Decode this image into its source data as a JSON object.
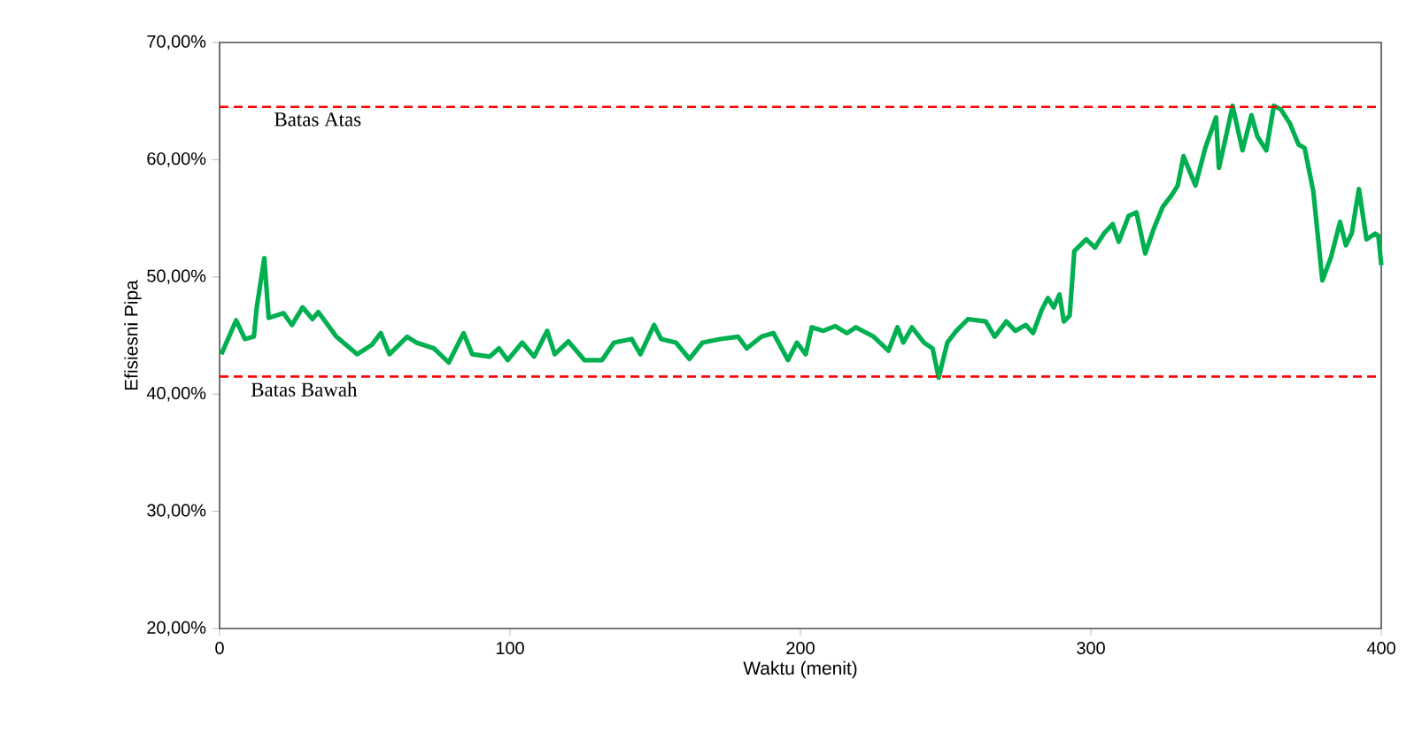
{
  "chart_data": {
    "type": "line",
    "xlabel": "Waktu (menit)",
    "ylabel": "Efisiesni Pipa",
    "xlim": [
      0,
      400
    ],
    "xticks": [
      0,
      100,
      200,
      300,
      400
    ],
    "ylim": [
      20,
      70
    ],
    "yticks": [
      {
        "value": 20,
        "label": "20,00%"
      },
      {
        "value": 30,
        "label": "30,00%"
      },
      {
        "value": 40,
        "label": "40,00%"
      },
      {
        "value": 50,
        "label": "50,00%"
      },
      {
        "value": 60,
        "label": "60,00%"
      },
      {
        "value": 70,
        "label": "70,00%"
      }
    ],
    "grid": false,
    "marker": "none",
    "line_style": "solid",
    "ref_lines": [
      {
        "axis": "y",
        "value": 64.5,
        "label": "Batas Atas",
        "color": "#ff0000",
        "line_style": "dashed"
      },
      {
        "axis": "y",
        "value": 41.5,
        "label": "Batas Bawah",
        "color": "#ff0000",
        "line_style": "dashed"
      }
    ],
    "series": [
      {
        "color": "#00b050",
        "x": [
          0.6,
          5.7,
          8.7,
          11.8,
          12.8,
          15.4,
          16.9,
          22,
          24.9,
          28.6,
          32,
          34,
          40.2,
          47.4,
          52.4,
          55.5,
          58.5,
          64.6,
          67.7,
          73.8,
          78.9,
          84,
          87,
          93,
          96.2,
          99.2,
          104.2,
          108.3,
          112.8,
          115.4,
          120.1,
          125.6,
          131.7,
          135.8,
          141.9,
          144.9,
          149.6,
          152,
          157.1,
          161.8,
          166.3,
          172.4,
          178.5,
          181.5,
          186.6,
          190.7,
          195.7,
          198.8,
          201.8,
          203.9,
          207.9,
          212,
          216,
          219.1,
          225.2,
          230.3,
          233.4,
          235.4,
          238.4,
          242.5,
          245.5,
          247.6,
          250.6,
          253.7,
          257.7,
          263.8,
          266.9,
          270.9,
          274,
          277.6,
          280.1,
          283.1,
          285.2,
          287.2,
          289.2,
          290.7,
          292.7,
          294.3,
          298.4,
          301.4,
          304.5,
          307.5,
          309.6,
          313,
          315.7,
          318.7,
          321.8,
          324.8,
          327.9,
          329.9,
          331.9,
          336,
          339.4,
          343.1,
          344.1,
          346.1,
          348.8,
          352.2,
          355.3,
          357.3,
          360.4,
          363,
          365.4,
          368.5,
          371.5,
          373.6,
          376.6,
          379.7,
          382.7,
          385.8,
          387.8,
          389.8,
          392.3,
          394.9,
          397.9,
          399,
          400
        ],
        "values": [
          43.4,
          46.3,
          44.7,
          44.9,
          47.4,
          51.6,
          46.5,
          46.9,
          45.9,
          47.4,
          46.4,
          47.0,
          44.9,
          43.4,
          44.2,
          45.2,
          43.4,
          44.9,
          44.4,
          43.9,
          42.7,
          45.2,
          43.4,
          43.2,
          43.9,
          42.9,
          44.4,
          43.2,
          45.4,
          43.4,
          44.5,
          42.9,
          42.9,
          44.4,
          44.7,
          43.4,
          45.9,
          44.7,
          44.4,
          43.0,
          44.4,
          44.7,
          44.9,
          43.9,
          44.9,
          45.2,
          42.9,
          44.4,
          43.4,
          45.7,
          45.4,
          45.8,
          45.2,
          45.7,
          44.9,
          43.7,
          45.7,
          44.4,
          45.7,
          44.4,
          43.9,
          41.4,
          44.4,
          45.4,
          46.4,
          46.2,
          44.9,
          46.2,
          45.4,
          45.9,
          45.2,
          47.2,
          48.2,
          47.4,
          48.5,
          46.2,
          46.7,
          52.2,
          53.2,
          52.5,
          53.7,
          54.5,
          53.0,
          55.2,
          55.5,
          52.0,
          54.2,
          56.0,
          57.0,
          57.8,
          60.3,
          57.8,
          61.0,
          63.6,
          59.3,
          61.5,
          64.6,
          60.8,
          63.8,
          62.0,
          60.8,
          64.6,
          64.3,
          63.1,
          61.3,
          61.0,
          57.3,
          49.7,
          51.7,
          54.7,
          52.7,
          53.7,
          57.5,
          53.2,
          53.7,
          53.5,
          51.0
        ]
      }
    ]
  }
}
